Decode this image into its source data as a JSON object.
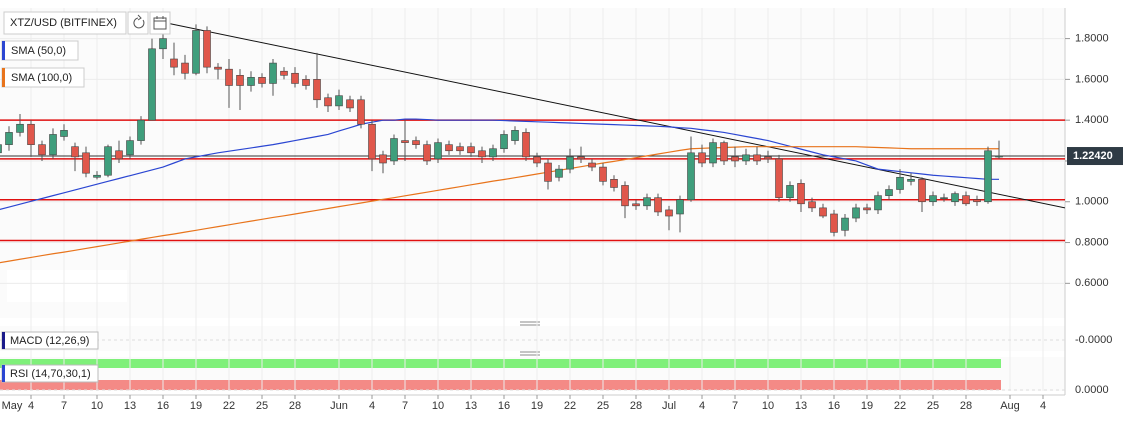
{
  "chart_data": {
    "type": "candlestick",
    "title": "XTZ/USD (BITFINEX)",
    "x": [
      "May 1",
      "May 2",
      "May 3",
      "May 4",
      "May 5",
      "May 6",
      "May 7",
      "May 8",
      "May 9",
      "May 10",
      "May 11",
      "May 12",
      "May 13",
      "May 14",
      "May 15",
      "May 16",
      "May 17",
      "May 18",
      "May 19",
      "May 20",
      "May 21",
      "May 22",
      "May 23",
      "May 24",
      "May 25",
      "May 26",
      "May 27",
      "May 28",
      "May 29",
      "May 30",
      "May 31",
      "Jun 1",
      "Jun 2",
      "Jun 3",
      "Jun 4",
      "Jun 5",
      "Jun 6",
      "Jun 7",
      "Jun 8",
      "Jun 9",
      "Jun 10",
      "Jun 11",
      "Jun 12",
      "Jun 13",
      "Jun 14",
      "Jun 15",
      "Jun 16",
      "Jun 17",
      "Jun 18",
      "Jun 19",
      "Jun 20",
      "Jun 21",
      "Jun 22",
      "Jun 23",
      "Jun 24",
      "Jun 25",
      "Jun 26",
      "Jun 27",
      "Jun 28",
      "Jun 29",
      "Jun 30",
      "Jul 1",
      "Jul 2",
      "Jul 3",
      "Jul 4",
      "Jul 5",
      "Jul 6",
      "Jul 7",
      "Jul 8",
      "Jul 9",
      "Jul 10",
      "Jul 11",
      "Jul 12",
      "Jul 13",
      "Jul 14",
      "Jul 15",
      "Jul 16",
      "Jul 17",
      "Jul 18",
      "Jul 19",
      "Jul 20",
      "Jul 21",
      "Jul 22",
      "Jul 23",
      "Jul 24",
      "Jul 25",
      "Jul 26",
      "Jul 27",
      "Jul 28",
      "Jul 29",
      "Jul 30",
      "Jul 31"
    ],
    "open": [
      1.24,
      1.28,
      1.34,
      1.38,
      1.28,
      1.23,
      1.32,
      1.27,
      1.24,
      1.12,
      1.13,
      1.25,
      1.23,
      1.3,
      1.4,
      1.75,
      1.7,
      1.68,
      1.63,
      1.84,
      1.66,
      1.65,
      1.62,
      1.57,
      1.61,
      1.58,
      1.64,
      1.63,
      1.6,
      1.6,
      1.51,
      1.47,
      1.5,
      1.5,
      1.38,
      1.23,
      1.2,
      1.3,
      1.3,
      1.28,
      1.21,
      1.28,
      1.27,
      1.27,
      1.25,
      1.22,
      1.26,
      1.3,
      1.34,
      1.22,
      1.19,
      1.12,
      1.16,
      1.22,
      1.19,
      1.17,
      1.11,
      1.08,
      0.99,
      0.98,
      1.02,
      0.96,
      0.94,
      1.01,
      1.24,
      1.19,
      1.29,
      1.22,
      1.2,
      1.23,
      1.22,
      1.21,
      1.02,
      1.09,
      1.0,
      0.97,
      0.94,
      0.86,
      0.92,
      0.97,
      0.96,
      1.03,
      1.06,
      1.1,
      1.11,
      1.0,
      1.02,
      1.0,
      1.03,
      1.01,
      1.0,
      1.22
    ],
    "high": [
      1.32,
      1.37,
      1.43,
      1.4,
      1.3,
      1.36,
      1.38,
      1.29,
      1.27,
      1.15,
      1.28,
      1.3,
      1.32,
      1.42,
      1.8,
      1.85,
      1.78,
      1.72,
      1.87,
      1.86,
      1.68,
      1.7,
      1.65,
      1.64,
      1.63,
      1.7,
      1.66,
      1.66,
      1.62,
      1.73,
      1.53,
      1.55,
      1.52,
      1.52,
      1.4,
      1.25,
      1.33,
      1.4,
      1.32,
      1.3,
      1.31,
      1.3,
      1.29,
      1.29,
      1.27,
      1.28,
      1.35,
      1.37,
      1.36,
      1.24,
      1.21,
      1.18,
      1.26,
      1.27,
      1.21,
      1.19,
      1.13,
      1.1,
      1.01,
      1.04,
      1.04,
      0.98,
      1.03,
      1.32,
      1.28,
      1.31,
      1.3,
      1.27,
      1.26,
      1.27,
      1.25,
      1.23,
      1.1,
      1.11,
      1.02,
      0.99,
      0.96,
      0.94,
      0.99,
      0.99,
      1.05,
      1.08,
      1.16,
      1.14,
      1.12,
      1.05,
      1.04,
      1.05,
      1.05,
      1.03,
      1.27,
      1.3
    ],
    "low": [
      1.2,
      1.25,
      1.32,
      1.22,
      1.2,
      1.21,
      1.3,
      1.15,
      1.12,
      1.11,
      1.12,
      1.19,
      1.21,
      1.28,
      1.4,
      1.7,
      1.62,
      1.6,
      1.62,
      1.63,
      1.6,
      1.46,
      1.45,
      1.54,
      1.56,
      1.52,
      1.6,
      1.56,
      1.55,
      1.46,
      1.44,
      1.45,
      1.44,
      1.36,
      1.15,
      1.14,
      1.18,
      1.2,
      1.26,
      1.18,
      1.19,
      1.23,
      1.23,
      1.22,
      1.19,
      1.2,
      1.24,
      1.28,
      1.2,
      1.17,
      1.06,
      1.1,
      1.14,
      1.19,
      1.15,
      1.08,
      1.05,
      0.92,
      0.96,
      0.96,
      0.93,
      0.86,
      0.85,
      1.0,
      1.17,
      1.17,
      1.18,
      1.17,
      1.18,
      1.18,
      1.19,
      1.0,
      1.0,
      0.95,
      0.95,
      0.92,
      0.83,
      0.83,
      0.9,
      0.94,
      0.94,
      1.01,
      1.04,
      1.08,
      0.95,
      0.98,
      1.0,
      0.98,
      0.98,
      0.98,
      0.99,
      1.21
    ],
    "close": [
      1.28,
      1.34,
      1.38,
      1.28,
      1.23,
      1.33,
      1.35,
      1.22,
      1.14,
      1.13,
      1.27,
      1.21,
      1.3,
      1.4,
      1.75,
      1.8,
      1.66,
      1.63,
      1.84,
      1.66,
      1.65,
      1.57,
      1.57,
      1.61,
      1.58,
      1.68,
      1.62,
      1.58,
      1.57,
      1.5,
      1.47,
      1.52,
      1.46,
      1.38,
      1.21,
      1.19,
      1.31,
      1.29,
      1.28,
      1.2,
      1.29,
      1.25,
      1.25,
      1.24,
      1.22,
      1.26,
      1.33,
      1.35,
      1.22,
      1.19,
      1.1,
      1.16,
      1.22,
      1.21,
      1.17,
      1.1,
      1.07,
      0.98,
      0.98,
      1.02,
      0.95,
      0.93,
      1.01,
      1.24,
      1.19,
      1.29,
      1.2,
      1.2,
      1.23,
      1.2,
      1.21,
      1.02,
      1.08,
      0.99,
      0.97,
      0.93,
      0.85,
      0.92,
      0.97,
      0.96,
      1.03,
      1.06,
      1.12,
      1.11,
      1.0,
      1.03,
      1.02,
      1.04,
      0.99,
      1.0,
      1.25,
      1.2242
    ],
    "up_color": "#3f9e7c",
    "down_color": "#e0574b",
    "series": [
      {
        "name": "SMA (50,0)",
        "color": "#2b46d2",
        "values": [
          0.96,
          0.974,
          0.988,
          1.002,
          1.016,
          1.03,
          1.044,
          1.058,
          1.072,
          1.086,
          1.1,
          1.114,
          1.128,
          1.142,
          1.156,
          1.17,
          1.19,
          1.21,
          1.22,
          1.23,
          1.24,
          1.248,
          1.256,
          1.264,
          1.272,
          1.28,
          1.29,
          1.3,
          1.31,
          1.32,
          1.33,
          1.347,
          1.363,
          1.38,
          1.39,
          1.4,
          1.4,
          1.405,
          1.405,
          1.403,
          1.4,
          1.4,
          1.4,
          1.4,
          1.4,
          1.4,
          1.398,
          1.396,
          1.394,
          1.392,
          1.39,
          1.388,
          1.386,
          1.384,
          1.382,
          1.38,
          1.378,
          1.376,
          1.374,
          1.372,
          1.37,
          1.367,
          1.363,
          1.36,
          1.353,
          1.347,
          1.34,
          1.33,
          1.32,
          1.31,
          1.3,
          1.286,
          1.272,
          1.258,
          1.244,
          1.23,
          1.22,
          1.21,
          1.2,
          1.18,
          1.16,
          1.154,
          1.148,
          1.142,
          1.136,
          1.13,
          1.126,
          1.122,
          1.118,
          1.114,
          1.11,
          1.11
        ]
      },
      {
        "name": "SMA (100,0)",
        "color": "#e8741c",
        "values": [
          0.7,
          0.709,
          0.718,
          0.727,
          0.736,
          0.745,
          0.753,
          0.762,
          0.771,
          0.78,
          0.789,
          0.798,
          0.807,
          0.816,
          0.825,
          0.834,
          0.842,
          0.851,
          0.86,
          0.869,
          0.878,
          0.887,
          0.896,
          0.905,
          0.914,
          0.923,
          0.931,
          0.94,
          0.949,
          0.958,
          0.967,
          0.976,
          0.985,
          0.994,
          1.003,
          1.012,
          1.02,
          1.029,
          1.038,
          1.047,
          1.056,
          1.065,
          1.074,
          1.083,
          1.092,
          1.101,
          1.109,
          1.118,
          1.127,
          1.136,
          1.145,
          1.154,
          1.163,
          1.172,
          1.181,
          1.19,
          1.198,
          1.207,
          1.216,
          1.225,
          1.234,
          1.243,
          1.252,
          1.26,
          1.262,
          1.264,
          1.266,
          1.268,
          1.27,
          1.27,
          1.27,
          1.27,
          1.27,
          1.27,
          1.27,
          1.27,
          1.27,
          1.27,
          1.27,
          1.268,
          1.266,
          1.264,
          1.262,
          1.26,
          1.26,
          1.26,
          1.26,
          1.26,
          1.26,
          1.26,
          1.26,
          1.26
        ]
      }
    ],
    "ylim": [
      0.43,
      1.95
    ],
    "yticks": [
      {
        "value": 0.6,
        "label": "0.6000"
      },
      {
        "value": 0.8,
        "label": "0.8000"
      },
      {
        "value": 1.0,
        "label": "1.0000"
      },
      {
        "value": 1.2,
        "label": "1.2000"
      },
      {
        "value": 1.4,
        "label": "1.4000"
      },
      {
        "value": 1.6,
        "label": "1.6000"
      },
      {
        "value": 1.8,
        "label": "1.8000"
      }
    ],
    "xticks": [
      {
        "value": "May 1",
        "label": "May"
      },
      {
        "value": "May 4",
        "label": "4"
      },
      {
        "value": "May 7",
        "label": "7"
      },
      {
        "value": "May 10",
        "label": "10"
      },
      {
        "value": "May 13",
        "label": "13"
      },
      {
        "value": "May 16",
        "label": "16"
      },
      {
        "value": "May 19",
        "label": "19"
      },
      {
        "value": "May 22",
        "label": "22"
      },
      {
        "value": "May 25",
        "label": "25"
      },
      {
        "value": "May 28",
        "label": "28"
      },
      {
        "value": "Jun 1",
        "label": "Jun"
      },
      {
        "value": "Jun 4",
        "label": "4"
      },
      {
        "value": "Jun 7",
        "label": "7"
      },
      {
        "value": "Jun 10",
        "label": "10"
      },
      {
        "value": "Jun 13",
        "label": "13"
      },
      {
        "value": "Jun 16",
        "label": "16"
      },
      {
        "value": "Jun 19",
        "label": "19"
      },
      {
        "value": "Jun 22",
        "label": "22"
      },
      {
        "value": "Jun 25",
        "label": "25"
      },
      {
        "value": "Jun 28",
        "label": "28"
      },
      {
        "value": "Jul 1",
        "label": "Jul"
      },
      {
        "value": "Jul 4",
        "label": "4"
      },
      {
        "value": "Jul 7",
        "label": "7"
      },
      {
        "value": "Jul 10",
        "label": "10"
      },
      {
        "value": "Jul 13",
        "label": "13"
      },
      {
        "value": "Jul 16",
        "label": "16"
      },
      {
        "value": "Jul 19",
        "label": "19"
      },
      {
        "value": "Jul 22",
        "label": "22"
      },
      {
        "value": "Jul 25",
        "label": "25"
      },
      {
        "value": "Jul 28",
        "label": "28"
      },
      {
        "value": "Aug 1",
        "label": "Aug"
      },
      {
        "value": "Aug 4",
        "label": "4"
      }
    ],
    "grid": true,
    "levels": {
      "values": [
        1.4,
        1.21,
        1.01,
        0.81
      ],
      "color": "#e01010"
    },
    "trendline": {
      "x": [
        "May 16",
        "Aug 6"
      ],
      "y": [
        1.88,
        0.97
      ],
      "color": "#111111"
    },
    "last_price": {
      "value": 1.2242,
      "label": "1.22420"
    },
    "indicators": [
      {
        "name": "MACD (12,26,9)",
        "ticks": [
          {
            "value": 0,
            "label": "-0.0000"
          }
        ]
      },
      {
        "name": "RSI (14,70,30,1)",
        "ticks": [
          {
            "value": 0,
            "label": "0.0000"
          }
        ]
      }
    ]
  }
}
